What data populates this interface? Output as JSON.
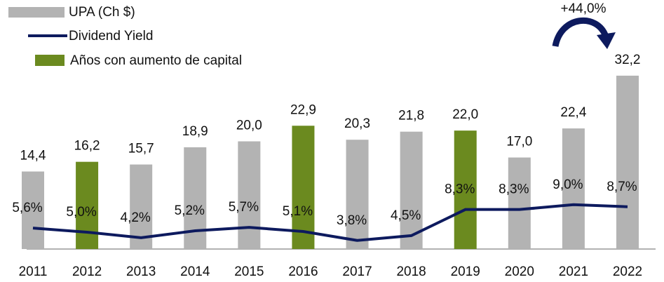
{
  "chart_data": {
    "type": "combo",
    "categories": [
      "2011",
      "2012",
      "2013",
      "2014",
      "2015",
      "2016",
      "2017",
      "2018",
      "2019",
      "2020",
      "2021",
      "2022"
    ],
    "series": [
      {
        "name": "UPA (Ch $)",
        "type": "bar",
        "color": "#b3b3b3",
        "colors": [
          "#b3b3b3",
          "#6b8a1f",
          "#b3b3b3",
          "#b3b3b3",
          "#b3b3b3",
          "#6b8a1f",
          "#b3b3b3",
          "#b3b3b3",
          "#6b8a1f",
          "#b3b3b3",
          "#b3b3b3",
          "#b3b3b3"
        ],
        "values": [
          14.4,
          16.2,
          15.7,
          18.9,
          20.0,
          22.9,
          20.3,
          21.8,
          22.0,
          17.0,
          22.4,
          32.2
        ],
        "value_labels": [
          "14,4",
          "16,2",
          "15,7",
          "18,9",
          "20,0",
          "22,9",
          "20,3",
          "21,8",
          "22,0",
          "17,0",
          "22,4",
          "32,2"
        ]
      },
      {
        "name": "Dividend Yield",
        "type": "line",
        "axis": "y2",
        "color": "#0d1a5e",
        "values": [
          5.6,
          5.0,
          4.2,
          5.2,
          5.7,
          5.1,
          3.8,
          4.5,
          8.3,
          8.3,
          9.0,
          8.7
        ],
        "value_labels": [
          "5,6%",
          "5,0%",
          "4,2%",
          "5,2%",
          "5,7%",
          "5,1%",
          "3,8%",
          "4,5%",
          "8,3%",
          "8,3%",
          "9,0%",
          "8,7%"
        ]
      }
    ],
    "highlight": {
      "name": "Años con aumento de capital",
      "color": "#6b8a1f"
    },
    "annotation": "+44,0%",
    "ylim": [
      0,
      40
    ],
    "y2lim": [
      0,
      30
    ]
  }
}
